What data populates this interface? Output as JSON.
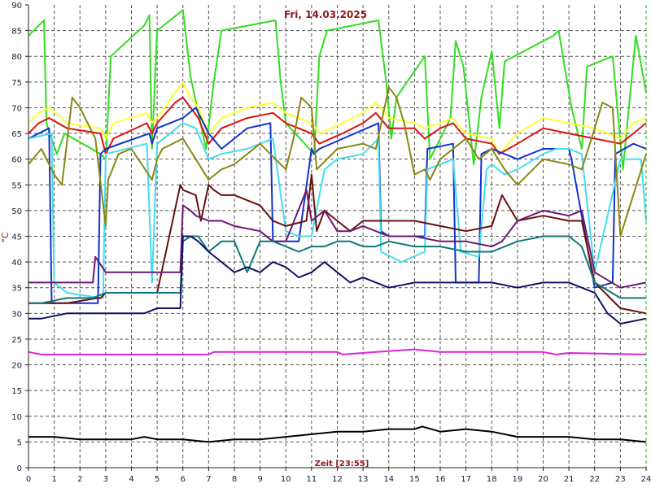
{
  "chart_data": {
    "type": "line",
    "title": "Fri, 14.03.2025",
    "xlabel": "Zeit [23:55]",
    "ylabel": "°C",
    "xlim": [
      0,
      24
    ],
    "ylim": [
      0,
      90
    ],
    "xticks": [
      "0",
      "1",
      "2",
      "3",
      "4",
      "5",
      "6",
      "7",
      "8",
      "9",
      "10",
      "11",
      "12",
      "13",
      "14",
      "15",
      "16",
      "17",
      "18",
      "19",
      "20",
      "21",
      "22",
      "23",
      "24"
    ],
    "yticks": [
      "0",
      "5",
      "10",
      "15",
      "20",
      "25",
      "30",
      "35",
      "40",
      "45",
      "50",
      "55",
      "60",
      "65",
      "70",
      "75",
      "80",
      "85",
      "90"
    ],
    "grid": true,
    "series": [
      {
        "color": "#33dd22",
        "x": [
          0,
          0.6,
          0.7,
          1.1,
          1.4,
          2.8,
          3.0,
          3.2,
          4.5,
          4.7,
          4.8,
          5.0,
          6.0,
          6.3,
          6.9,
          7.2,
          7.5,
          9.6,
          9.8,
          10.0,
          11.1,
          11.3,
          11.6,
          13.6,
          13.9,
          14.1,
          14.3,
          15.4,
          15.6,
          16.4,
          16.6,
          16.9,
          17.3,
          17.6,
          18.0,
          18.3,
          18.5,
          20.4,
          20.6,
          21.1,
          21.5,
          21.7,
          22.7,
          23.1,
          23.6,
          24.0
        ],
        "values": [
          84,
          87,
          67,
          61,
          65,
          61,
          60,
          80,
          86,
          88,
          62,
          85,
          89,
          76,
          62,
          75,
          85,
          87,
          75,
          67,
          61,
          80,
          85,
          87,
          75,
          64,
          72,
          80,
          60,
          68,
          83,
          78,
          59,
          72,
          81,
          66,
          79,
          84,
          85,
          70,
          62,
          78,
          80,
          58,
          84,
          73
        ]
      },
      {
        "color": "#ffff33",
        "x": [
          0,
          0.4,
          0.8,
          1.5,
          2.8,
          3.0,
          3.3,
          4.6,
          4.8,
          5.0,
          5.7,
          6.0,
          6.3,
          6.6,
          7.0,
          7.5,
          8.5,
          9.5,
          10.0,
          11.0,
          11.3,
          12.2,
          13.0,
          13.5,
          14.0,
          15.0,
          15.4,
          16.0,
          16.5,
          17.0,
          18.0,
          18.3,
          19.0,
          20.0,
          21.0,
          22.0,
          23.0,
          23.5,
          24.0
        ],
        "values": [
          67,
          69,
          70,
          67,
          66,
          64,
          67,
          69,
          67,
          68,
          73,
          75,
          72,
          70,
          65,
          68,
          70,
          71,
          69,
          67,
          65,
          67,
          69,
          71,
          68,
          67,
          66,
          67,
          68,
          65,
          64,
          61,
          65,
          68,
          67,
          66,
          64,
          67,
          68
        ]
      },
      {
        "color": "#dd1111",
        "x": [
          0,
          0.4,
          0.8,
          1.5,
          2.8,
          3.0,
          3.3,
          4.6,
          4.8,
          5.0,
          5.7,
          6.0,
          6.3,
          6.6,
          7.0,
          7.5,
          8.5,
          9.5,
          10.0,
          11.0,
          11.3,
          12.2,
          13.0,
          13.5,
          14.0,
          15.0,
          15.4,
          16.0,
          16.5,
          17.0,
          18.0,
          18.3,
          19.0,
          20.0,
          21.0,
          22.0,
          23.0,
          23.5,
          24.0
        ],
        "values": [
          65,
          67,
          68,
          66,
          65,
          61,
          64,
          67,
          65,
          67,
          71,
          72,
          70,
          68,
          63,
          66,
          68,
          69,
          67,
          65,
          63,
          65,
          67,
          69,
          66,
          66,
          64,
          66,
          67,
          64,
          63,
          61,
          63,
          66,
          65,
          64,
          63,
          65,
          67
        ]
      },
      {
        "color": "#1133cc",
        "x": [
          0,
          0.8,
          0.9,
          1.5,
          2.7,
          2.8,
          3.0,
          4.7,
          4.8,
          5.0,
          6.0,
          6.5,
          7.0,
          7.5,
          8.5,
          9.4,
          9.5,
          10.0,
          10.5,
          11.0,
          11.1,
          11.3,
          13.6,
          13.7,
          14.0,
          15.4,
          15.5,
          16.5,
          16.6,
          17.5,
          17.6,
          18.0,
          19.0,
          20.0,
          21.0,
          21.1,
          22.0,
          22.7,
          22.8,
          23.5,
          24.0
        ],
        "values": [
          64,
          66,
          32,
          32,
          32,
          61,
          62,
          65,
          63,
          66,
          68,
          70,
          65,
          62,
          66,
          67,
          44,
          44,
          44,
          62,
          61,
          62,
          67,
          46,
          45,
          45,
          62,
          63,
          36,
          36,
          61,
          62,
          60,
          62,
          62,
          60,
          35,
          36,
          61,
          63,
          62
        ]
      },
      {
        "color": "#44ddee",
        "x": [
          0,
          0.9,
          1.0,
          1.5,
          2.8,
          2.9,
          3.0,
          4.6,
          4.8,
          5.0,
          6.0,
          6.5,
          7.0,
          7.5,
          8.5,
          9.5,
          10.0,
          10.5,
          11.0,
          11.5,
          12.0,
          13.0,
          13.6,
          13.7,
          14.5,
          15.4,
          15.5,
          16.5,
          16.8,
          17.5,
          17.8,
          18.0,
          18.5,
          19.0,
          20.0,
          20.5,
          21.0,
          21.5,
          22.0,
          23.0,
          23.8,
          24.0
        ],
        "values": [
          64,
          65,
          36,
          34,
          33,
          33,
          61,
          63,
          36,
          63,
          67,
          66,
          60,
          61,
          62,
          64,
          46,
          45,
          45,
          58,
          60,
          61,
          64,
          42,
          40,
          42,
          58,
          60,
          42,
          41,
          58,
          59,
          57,
          58,
          61,
          62,
          62,
          61,
          38,
          60,
          60,
          48
        ]
      },
      {
        "color": "#888811",
        "x": [
          0,
          0.5,
          1.0,
          1.3,
          1.7,
          2.0,
          2.6,
          3.0,
          3.1,
          3.5,
          4.0,
          4.8,
          5.0,
          5.2,
          6.0,
          6.5,
          7.0,
          7.5,
          8.0,
          9.0,
          10.0,
          10.3,
          10.6,
          11.0,
          11.2,
          12.0,
          13.0,
          13.5,
          14.0,
          14.3,
          14.6,
          15.0,
          15.4,
          15.6,
          16.0,
          17.0,
          17.5,
          18.0,
          18.5,
          19.0,
          20.0,
          21.0,
          21.5,
          22.0,
          22.3,
          22.7,
          23.0,
          24.0
        ],
        "values": [
          59,
          62,
          57,
          55,
          72,
          70,
          64,
          47,
          56,
          61,
          62,
          56,
          60,
          62,
          64,
          60,
          56,
          58,
          59,
          63,
          58,
          64,
          72,
          70,
          58,
          62,
          63,
          62,
          74,
          72,
          67,
          57,
          58,
          56,
          60,
          64,
          60,
          62,
          58,
          55,
          60,
          59,
          58,
          66,
          71,
          70,
          45,
          61
        ]
      },
      {
        "color": "#6a1010",
        "x": [
          0,
          0.5,
          1.5,
          2.7,
          2.8,
          3.0,
          4.5,
          5.0,
          5.9,
          6.0,
          6.5,
          6.7,
          7.0,
          7.2,
          7.5,
          8.0,
          9.0,
          9.5,
          10.0,
          10.8,
          11.0,
          11.2,
          11.5,
          12.0,
          12.5,
          13.0,
          14.0,
          15.0,
          16.0,
          17.0,
          18.0,
          18.4,
          19.0,
          20.0,
          21.0,
          21.5,
          22.0,
          23.0,
          24.0
        ],
        "values": [
          32,
          32,
          32,
          33,
          33,
          34,
          34,
          34,
          55,
          54,
          53,
          48,
          55,
          54,
          53,
          53,
          51,
          48,
          47,
          48,
          57,
          46,
          50,
          48,
          46,
          48,
          48,
          48,
          47,
          46,
          47,
          53,
          48,
          49,
          48,
          48,
          36,
          31,
          30
        ]
      },
      {
        "color": "#6a1870",
        "x": [
          0,
          0.5,
          1.5,
          2.5,
          2.6,
          3.0,
          4.5,
          5.0,
          5.9,
          6.0,
          6.3,
          6.5,
          7.0,
          7.5,
          8.0,
          9.0,
          9.5,
          10.0,
          10.8,
          11.0,
          11.5,
          12.0,
          12.5,
          13.0,
          14.0,
          15.0,
          16.0,
          17.0,
          18.0,
          18.4,
          19.0,
          20.0,
          21.0,
          21.5,
          22.0,
          23.0,
          24.0
        ],
        "values": [
          36,
          36,
          36,
          36,
          41,
          38,
          38,
          38,
          38,
          51,
          50,
          49,
          48,
          48,
          47,
          46,
          44,
          44,
          54,
          48,
          50,
          46,
          46,
          47,
          45,
          45,
          44,
          44,
          43,
          44,
          48,
          50,
          49,
          50,
          38,
          35,
          36
        ]
      },
      {
        "color": "#117777",
        "x": [
          0,
          0.5,
          1.5,
          2.5,
          3.0,
          4.5,
          5.0,
          5.9,
          6.0,
          6.3,
          6.6,
          7.0,
          7.5,
          8.0,
          8.5,
          9.0,
          9.5,
          10.0,
          10.5,
          11.0,
          11.5,
          12.0,
          12.5,
          13.0,
          13.5,
          14.0,
          15.0,
          16.0,
          17.0,
          18.0,
          19.0,
          20.0,
          21.0,
          21.5,
          22.0,
          23.0,
          24.0
        ],
        "values": [
          32,
          32,
          33,
          33,
          34,
          34,
          34,
          34,
          44,
          45,
          45,
          42,
          44,
          44,
          38,
          44,
          44,
          43,
          42,
          43,
          43,
          44,
          44,
          43,
          43,
          44,
          43,
          43,
          42,
          42,
          44,
          45,
          45,
          43,
          36,
          33,
          33
        ]
      },
      {
        "color": "#111166",
        "x": [
          0,
          0.5,
          1.5,
          2.5,
          3.0,
          4.5,
          5.0,
          5.9,
          6.0,
          6.3,
          6.6,
          7.0,
          7.5,
          8.0,
          8.5,
          9.0,
          9.5,
          10.0,
          10.5,
          11.0,
          11.5,
          12.0,
          12.5,
          13.0,
          14.0,
          15.0,
          16.0,
          17.0,
          18.0,
          19.0,
          20.0,
          21.0,
          21.5,
          22.0,
          22.5,
          23.0,
          24.0
        ],
        "values": [
          29,
          29,
          30,
          30,
          30,
          30,
          31,
          31,
          45,
          45,
          44,
          42,
          40,
          38,
          39,
          38,
          40,
          39,
          37,
          38,
          40,
          38,
          36,
          37,
          35,
          36,
          36,
          36,
          36,
          35,
          36,
          36,
          35,
          34,
          30,
          28,
          29
        ]
      },
      {
        "color": "#dd22dd",
        "x": [
          0,
          0.5,
          1.0,
          5.0,
          7.0,
          7.2,
          12.0,
          12.2,
          13.5,
          15.0,
          16.0,
          17.0,
          20.0,
          20.5,
          21.0,
          24.0
        ],
        "values": [
          22.5,
          22,
          22,
          22,
          22,
          22.5,
          22.5,
          22,
          22.5,
          23,
          22.5,
          22.5,
          22.5,
          22,
          22.3,
          22
        ]
      },
      {
        "color": "#000000",
        "x": [
          0,
          1.0,
          2.0,
          3.0,
          4.0,
          4.5,
          5.0,
          6.0,
          7.0,
          8.0,
          9.0,
          10.0,
          11.0,
          12.0,
          13.0,
          14.0,
          15.0,
          15.3,
          16.0,
          17.0,
          18.0,
          19.0,
          20.0,
          21.0,
          22.0,
          23.0,
          24.0
        ],
        "values": [
          6,
          6,
          5.5,
          5.5,
          5.5,
          6,
          5.5,
          5.5,
          5,
          5.5,
          5.5,
          6,
          6.5,
          7,
          7,
          7.5,
          7.5,
          8,
          7,
          7.5,
          7,
          6,
          6,
          6,
          5.5,
          5.5,
          5
        ]
      }
    ]
  }
}
